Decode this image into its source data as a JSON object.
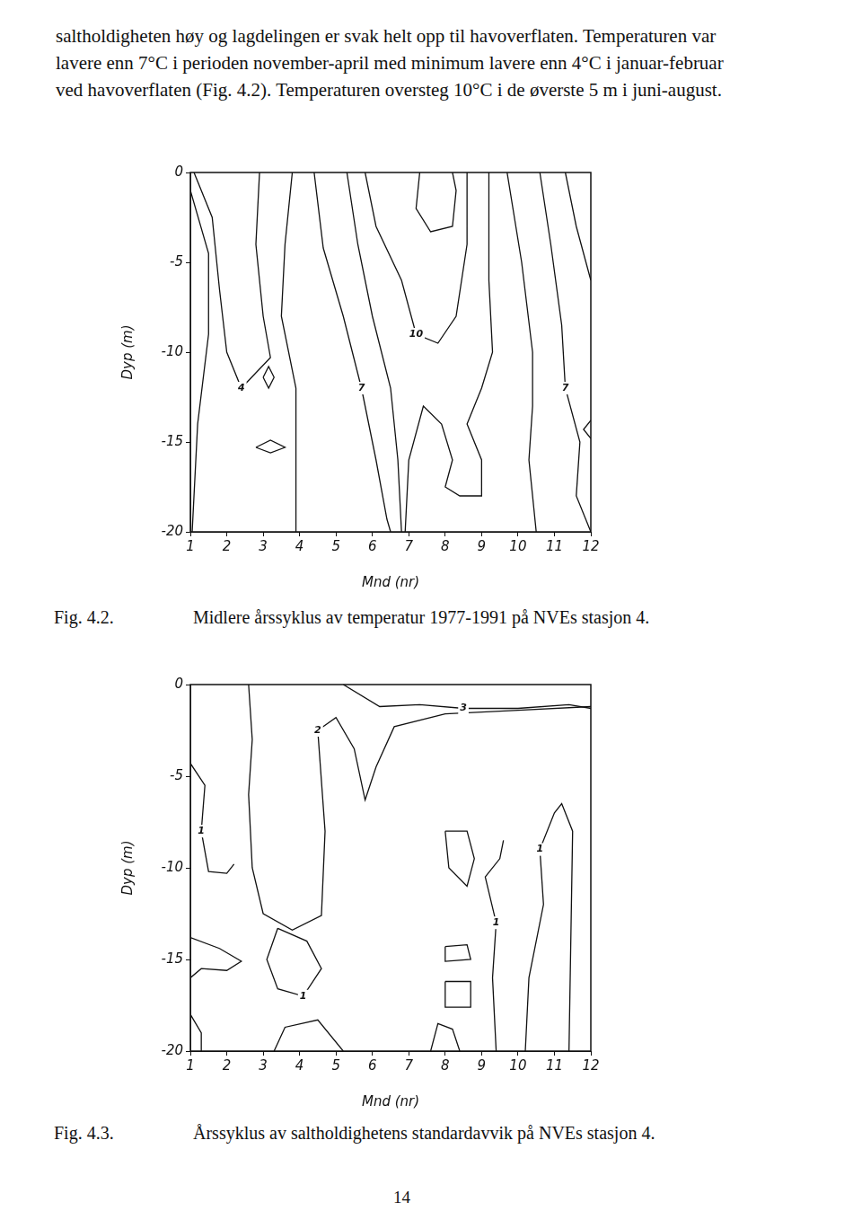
{
  "text": [
    "saltholdigheten høy og lagdelingen er svak helt opp til havoverflaten. Temperaturen var",
    "lavere enn 7°C i perioden november-april med minimum lavere enn 4°C i januar-februar",
    "ved havoverflaten (Fig. 4.2). Temperaturen oversteg 10°C i de øverste 5 m i juni-august."
  ],
  "page_number": "14",
  "chart_data": [
    {
      "type": "contour",
      "figure": "Fig. 4.2.",
      "caption": "Midlere årssyklus av temperatur 1977-1991 på NVEs stasjon 4.",
      "x_label": "Mnd (nr)",
      "y_label": "Dyp (m)",
      "xlim": [
        1,
        12
      ],
      "xticks": [
        1,
        2,
        3,
        4,
        5,
        6,
        7,
        8,
        9,
        10,
        11,
        12
      ],
      "ylim": [
        -20,
        0
      ],
      "yticks": [
        -20,
        -15,
        -10,
        -5,
        0
      ],
      "grid": false,
      "contours": [
        {
          "label": "4",
          "points": [
            [
              1.1,
              0
            ],
            [
              1.6,
              -2.5
            ],
            [
              1.8,
              -6.5
            ],
            [
              2.0,
              -10
            ],
            [
              2.4,
              -12
            ],
            [
              3.2,
              -10.3
            ],
            [
              3.0,
              -8
            ],
            [
              2.8,
              -4
            ],
            [
              2.9,
              0
            ]
          ]
        },
        {
          "points": [
            [
              3.0,
              -11.4
            ],
            [
              3.15,
              -10.8
            ],
            [
              3.3,
              -11.4
            ],
            [
              3.15,
              -12
            ],
            [
              3.0,
              -11.4
            ]
          ]
        },
        {
          "points": [
            [
              2.8,
              -15.3
            ],
            [
              3.2,
              -14.9
            ],
            [
              3.6,
              -15.3
            ],
            [
              3.2,
              -15.6
            ],
            [
              2.8,
              -15.3
            ]
          ]
        },
        {
          "points": [
            [
              1.0,
              -1
            ],
            [
              1.5,
              -4.5
            ],
            [
              1.5,
              -9
            ],
            [
              1.2,
              -14
            ],
            [
              1.05,
              -20
            ]
          ]
        },
        {
          "points": [
            [
              3.8,
              0
            ],
            [
              3.6,
              -4
            ],
            [
              3.5,
              -8
            ],
            [
              3.9,
              -12
            ],
            [
              3.9,
              -16
            ],
            [
              3.9,
              -20
            ]
          ]
        },
        {
          "label": "7",
          "points": [
            [
              4.4,
              0
            ],
            [
              4.65,
              -4.2
            ],
            [
              5.2,
              -8
            ],
            [
              5.7,
              -12
            ],
            [
              6.1,
              -16
            ],
            [
              6.4,
              -19.3
            ],
            [
              6.5,
              -20
            ]
          ]
        },
        {
          "points": [
            [
              5.3,
              0
            ],
            [
              5.6,
              -4
            ],
            [
              6.0,
              -8
            ],
            [
              6.5,
              -12
            ],
            [
              6.7,
              -16
            ],
            [
              6.8,
              -20
            ]
          ]
        },
        {
          "label": "10",
          "points": [
            [
              5.8,
              0
            ],
            [
              6.1,
              -3
            ],
            [
              6.8,
              -6
            ],
            [
              7.2,
              -9
            ],
            [
              7.8,
              -9.5
            ],
            [
              8.3,
              -8
            ],
            [
              8.6,
              -4
            ],
            [
              8.6,
              0
            ]
          ]
        },
        {
          "points": [
            [
              7.3,
              0
            ],
            [
              7.2,
              -2
            ],
            [
              7.6,
              -3.3
            ],
            [
              8.2,
              -3
            ],
            [
              8.3,
              -1
            ],
            [
              8.2,
              0
            ]
          ]
        },
        {
          "points": [
            [
              6.9,
              -20
            ],
            [
              7.0,
              -16
            ],
            [
              7.4,
              -13
            ],
            [
              7.9,
              -14
            ],
            [
              8.2,
              -16
            ],
            [
              8.0,
              -17.5
            ],
            [
              8.4,
              -18
            ],
            [
              9.0,
              -18
            ],
            [
              9.0,
              -16
            ],
            [
              8.6,
              -14
            ],
            [
              9.0,
              -12
            ],
            [
              9.3,
              -10
            ],
            [
              9.2,
              -6
            ],
            [
              9.2,
              0
            ]
          ]
        },
        {
          "points": [
            [
              9.7,
              0
            ],
            [
              10.1,
              -5
            ],
            [
              10.4,
              -10
            ],
            [
              10.4,
              -13
            ],
            [
              10.3,
              -16
            ],
            [
              10.5,
              -20
            ]
          ]
        },
        {
          "label": "7",
          "points": [
            [
              10.6,
              0
            ],
            [
              10.9,
              -4
            ],
            [
              11.2,
              -8.5
            ],
            [
              11.3,
              -12
            ],
            [
              11.7,
              -15
            ],
            [
              11.6,
              -18
            ],
            [
              12,
              -20
            ]
          ]
        },
        {
          "points": [
            [
              11.3,
              0
            ],
            [
              11.6,
              -3
            ],
            [
              12.0,
              -6
            ]
          ]
        },
        {
          "points": [
            [
              12,
              -13.8
            ],
            [
              11.8,
              -14.3
            ],
            [
              12,
              -14.8
            ]
          ]
        }
      ]
    },
    {
      "type": "contour",
      "figure": "Fig. 4.3.",
      "caption": "Årssyklus av saltholdighetens standardavvik på NVEs stasjon 4.",
      "x_label": "Mnd (nr)",
      "y_label": "Dyp (m)",
      "xlim": [
        1,
        12
      ],
      "xticks": [
        1,
        2,
        3,
        4,
        5,
        6,
        7,
        8,
        9,
        10,
        11,
        12
      ],
      "ylim": [
        -20,
        0
      ],
      "yticks": [
        -20,
        -15,
        -10,
        -5,
        0
      ],
      "grid": false,
      "contours": [
        {
          "label": "2",
          "points": [
            [
              2.6,
              0
            ],
            [
              2.7,
              -3
            ],
            [
              2.6,
              -6
            ],
            [
              2.7,
              -10
            ],
            [
              3.0,
              -12.5
            ],
            [
              3.8,
              -13.4
            ],
            [
              4.6,
              -12.6
            ],
            [
              4.7,
              -8
            ],
            [
              4.5,
              -2.5
            ],
            [
              5.0,
              -1.8
            ],
            [
              5.5,
              -3.5
            ],
            [
              5.8,
              -6.3
            ],
            [
              6.1,
              -4.5
            ],
            [
              6.6,
              -2.3
            ],
            [
              8,
              -1.6
            ],
            [
              10,
              -1.4
            ],
            [
              12,
              -1.2
            ]
          ]
        },
        {
          "label": "3",
          "points": [
            [
              5.2,
              0
            ],
            [
              6.2,
              -1.2
            ],
            [
              7.3,
              -1.1
            ],
            [
              8.5,
              -1.3
            ],
            [
              10,
              -1.3
            ],
            [
              11.4,
              -1.1
            ],
            [
              12,
              -1.3
            ]
          ]
        },
        {
          "label": "1",
          "points": [
            [
              1.0,
              -4.3
            ],
            [
              1.4,
              -5.5
            ],
            [
              1.3,
              -8
            ],
            [
              1.5,
              -10.2
            ],
            [
              2.0,
              -10.3
            ],
            [
              2.2,
              -9.8
            ]
          ]
        },
        {
          "points": [
            [
              1.0,
              -13.8
            ],
            [
              1.8,
              -14.4
            ],
            [
              2.4,
              -15.1
            ],
            [
              2.0,
              -15.6
            ],
            [
              1.3,
              -15.5
            ],
            [
              1.0,
              -16
            ]
          ]
        },
        {
          "label": "1",
          "points": [
            [
              3.4,
              -13.3
            ],
            [
              3.1,
              -15
            ],
            [
              3.4,
              -16.6
            ],
            [
              4.1,
              -17
            ],
            [
              4.6,
              -15.5
            ],
            [
              4.2,
              -14
            ],
            [
              3.4,
              -13.3
            ]
          ]
        },
        {
          "points": [
            [
              1.0,
              -18
            ],
            [
              1.3,
              -19
            ],
            [
              1.3,
              -20
            ]
          ]
        },
        {
          "points": [
            [
              8.0,
              -8
            ],
            [
              8.1,
              -10
            ],
            [
              8.6,
              -11
            ],
            [
              8.8,
              -9.5
            ],
            [
              8.6,
              -8
            ],
            [
              8.0,
              -8
            ]
          ]
        },
        {
          "points": [
            [
              8.0,
              -14.3
            ],
            [
              8.6,
              -14.2
            ],
            [
              8.7,
              -15.0
            ],
            [
              8.0,
              -15.1
            ],
            [
              8.0,
              -14.3
            ]
          ]
        },
        {
          "points": [
            [
              8.0,
              -16.2
            ],
            [
              8.7,
              -16.2
            ],
            [
              8.7,
              -17.6
            ],
            [
              8.0,
              -17.6
            ],
            [
              8.0,
              -16.2
            ]
          ]
        },
        {
          "label": "1",
          "points": [
            [
              9.4,
              -20
            ],
            [
              9.3,
              -16
            ],
            [
              9.4,
              -13
            ],
            [
              9.1,
              -10.5
            ],
            [
              9.5,
              -9.5
            ],
            [
              9.6,
              -8.5
            ]
          ]
        },
        {
          "label": "1",
          "points": [
            [
              10.2,
              -20
            ],
            [
              10.3,
              -16
            ],
            [
              10.7,
              -12
            ],
            [
              10.6,
              -9
            ],
            [
              11.0,
              -7
            ],
            [
              11.2,
              -6.5
            ],
            [
              11.5,
              -8
            ],
            [
              11.4,
              -20
            ]
          ]
        },
        {
          "points": [
            [
              7.6,
              -20
            ],
            [
              7.8,
              -18.5
            ],
            [
              8.2,
              -18.8
            ],
            [
              8.4,
              -20
            ]
          ]
        },
        {
          "points": [
            [
              3.3,
              -20
            ],
            [
              3.6,
              -18.7
            ],
            [
              4.5,
              -18.3
            ],
            [
              5.2,
              -20
            ]
          ]
        }
      ]
    }
  ]
}
